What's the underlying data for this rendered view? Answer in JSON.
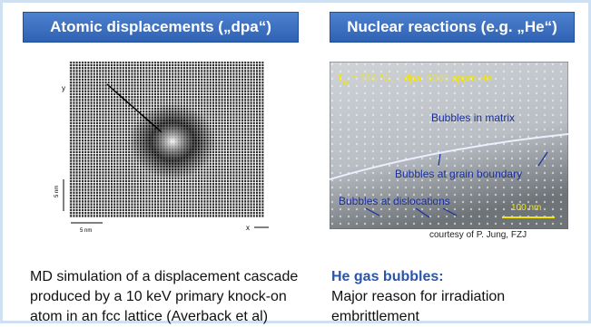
{
  "left": {
    "header": "Atomic displacements („dpa“)",
    "figure": {
      "y_axis": "y",
      "x_axis": "x",
      "scale_y": "5 nm",
      "scale_x": "5 nm"
    },
    "caption_lines": [
      "MD simulation of a displacement cascade",
      "produced by a 10 keV primary knock-on",
      "atom in an fcc lattice (Averback et al)"
    ]
  },
  "right": {
    "header": "Nuclear reactions (e.g. „He“)",
    "figure": {
      "condition_symbol": "T",
      "condition_subscript": "irr",
      "condition_text": " = 550 °C, 1 dpa, 5000 appm He",
      "labels": [
        "Bubbles in matrix",
        "Bubbles at grain boundary",
        "Bubbles at dislocations"
      ],
      "scale_bar": "100 nm"
    },
    "credit": "courtesy of P. Jung, FZJ",
    "caption_title": "He gas bubbles:",
    "caption_lines": [
      "Major reason for irradiation",
      "embrittlement"
    ]
  }
}
